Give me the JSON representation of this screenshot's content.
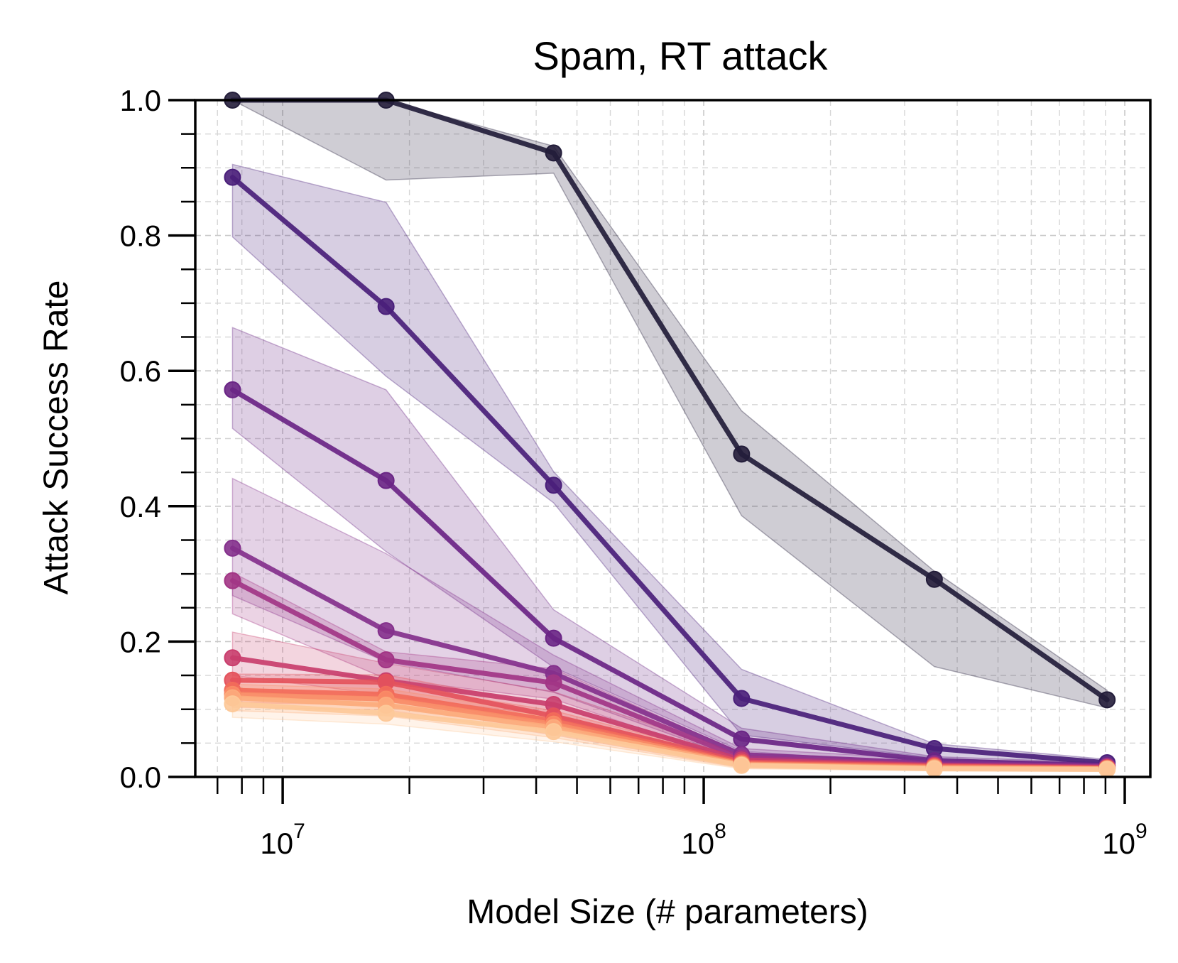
{
  "chart_data": {
    "type": "line",
    "title": "Spam, RT attack",
    "xlabel": "Model Size (# parameters)",
    "ylabel": "Attack Success Rate",
    "xscale": "log",
    "xlim": [
      6200000,
      1150000000
    ],
    "ylim": [
      0.0,
      1.0
    ],
    "grid": true,
    "y_ticks": [
      "0.0",
      "0.2",
      "0.4",
      "0.6",
      "0.8",
      "1.0"
    ],
    "x_ticks": [
      {
        "base": "10",
        "exp": "7",
        "value": 10000000
      },
      {
        "base": "10",
        "exp": "8",
        "value": 100000000
      },
      {
        "base": "10",
        "exp": "9",
        "value": 1000000000
      }
    ],
    "x": [
      7600000,
      17600000,
      44000000,
      123000000,
      353000000,
      908000000
    ],
    "series": [
      {
        "color": "#231d3a",
        "values": [
          1.0,
          1.0,
          0.922,
          0.477,
          0.292,
          0.114
        ],
        "lower": [
          1.0,
          0.882,
          0.892,
          0.386,
          0.163,
          0.102
        ],
        "upper": [
          1.0,
          1.0,
          0.932,
          0.541,
          0.304,
          0.128
        ]
      },
      {
        "color": "#4a1f7a",
        "values": [
          0.886,
          0.695,
          0.431,
          0.116,
          0.042,
          0.021
        ],
        "lower": [
          0.798,
          0.592,
          0.405,
          0.062,
          0.028,
          0.016
        ],
        "upper": [
          0.905,
          0.849,
          0.451,
          0.159,
          0.049,
          0.026
        ]
      },
      {
        "color": "#6a2585",
        "values": [
          0.572,
          0.438,
          0.205,
          0.056,
          0.024,
          0.017
        ],
        "lower": [
          0.515,
          0.333,
          0.162,
          0.038,
          0.018,
          0.013
        ],
        "upper": [
          0.664,
          0.572,
          0.247,
          0.072,
          0.03,
          0.021
        ]
      },
      {
        "color": "#84308c",
        "values": [
          0.338,
          0.216,
          0.153,
          0.033,
          0.02,
          0.016
        ],
        "lower": [
          0.268,
          0.17,
          0.125,
          0.025,
          0.015,
          0.012
        ],
        "upper": [
          0.441,
          0.33,
          0.18,
          0.042,
          0.026,
          0.02
        ]
      },
      {
        "color": "#a23585",
        "values": [
          0.29,
          0.173,
          0.139,
          0.028,
          0.018,
          0.015
        ],
        "lower": [
          0.241,
          0.145,
          0.115,
          0.021,
          0.014,
          0.011
        ],
        "upper": [
          0.302,
          0.185,
          0.16,
          0.035,
          0.023,
          0.019
        ]
      },
      {
        "color": "#c93e6d",
        "values": [
          0.176,
          0.142,
          0.107,
          0.025,
          0.017,
          0.014
        ],
        "lower": [
          0.15,
          0.121,
          0.09,
          0.019,
          0.013,
          0.011
        ],
        "upper": [
          0.214,
          0.168,
          0.126,
          0.032,
          0.021,
          0.018
        ]
      },
      {
        "color": "#e4525c",
        "values": [
          0.143,
          0.14,
          0.09,
          0.022,
          0.016,
          0.013
        ],
        "lower": [
          0.128,
          0.118,
          0.074,
          0.017,
          0.012,
          0.01
        ],
        "upper": [
          0.152,
          0.151,
          0.104,
          0.028,
          0.02,
          0.017
        ]
      },
      {
        "color": "#f26b5a",
        "values": [
          0.128,
          0.122,
          0.083,
          0.02,
          0.015,
          0.013
        ],
        "lower": [
          0.11,
          0.106,
          0.068,
          0.015,
          0.011,
          0.01
        ],
        "upper": [
          0.142,
          0.137,
          0.098,
          0.026,
          0.019,
          0.016
        ]
      },
      {
        "color": "#f98b66",
        "values": [
          0.122,
          0.115,
          0.078,
          0.019,
          0.014,
          0.012
        ],
        "lower": [
          0.103,
          0.099,
          0.062,
          0.014,
          0.01,
          0.009
        ],
        "upper": [
          0.137,
          0.13,
          0.092,
          0.024,
          0.018,
          0.016
        ]
      },
      {
        "color": "#fcab7c",
        "values": [
          0.117,
          0.106,
          0.073,
          0.018,
          0.013,
          0.012
        ],
        "lower": [
          0.098,
          0.09,
          0.058,
          0.013,
          0.01,
          0.009
        ],
        "upper": [
          0.132,
          0.121,
          0.088,
          0.023,
          0.017,
          0.015
        ]
      },
      {
        "color": "#fdc999",
        "values": [
          0.108,
          0.094,
          0.067,
          0.017,
          0.012,
          0.011
        ],
        "lower": [
          0.088,
          0.078,
          0.052,
          0.012,
          0.009,
          0.008
        ],
        "upper": [
          0.124,
          0.11,
          0.082,
          0.022,
          0.016,
          0.014
        ]
      }
    ]
  }
}
